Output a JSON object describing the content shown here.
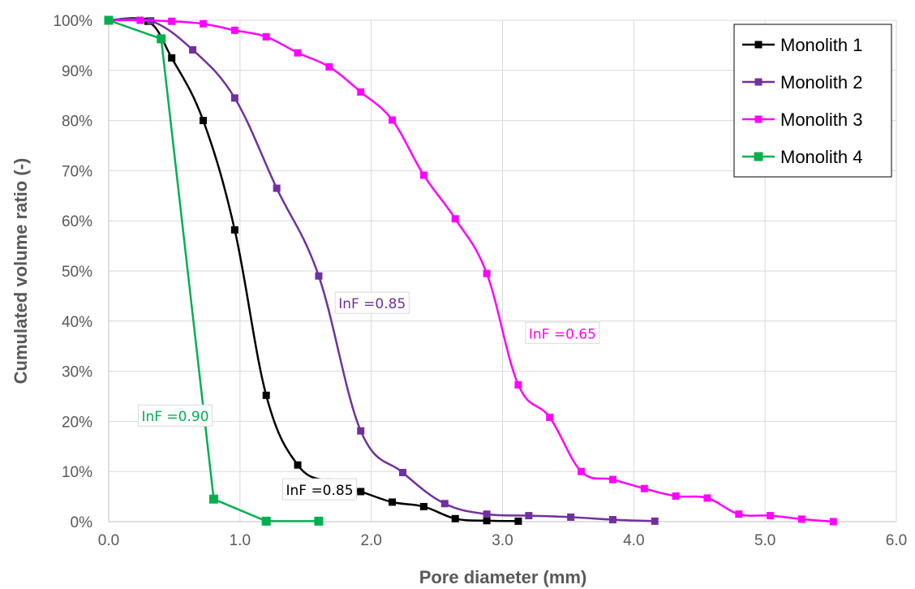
{
  "chart_data": {
    "type": "line",
    "title": "",
    "xlabel": "Pore diameter (mm)",
    "ylabel": "Cumulated volume ratio (-)",
    "xlim": [
      0,
      6
    ],
    "ylim": [
      0,
      100
    ],
    "x_ticks": [
      "0.0",
      "1.0",
      "2.0",
      "3.0",
      "4.0",
      "5.0",
      "6.0"
    ],
    "y_ticks": [
      "0%",
      "10%",
      "20%",
      "30%",
      "40%",
      "50%",
      "60%",
      "70%",
      "80%",
      "90%",
      "100%"
    ],
    "grid": true,
    "legend_position": "top-right",
    "series": [
      {
        "name": "Monolith 1",
        "color": "#000000",
        "x": [
          0.0,
          0.3,
          0.48,
          0.72,
          0.96,
          1.2,
          1.44,
          1.68,
          1.92,
          2.16,
          2.4,
          2.64,
          2.88,
          3.12
        ],
        "y": [
          100,
          99.8,
          92.5,
          80,
          58.2,
          25.2,
          11.3,
          7.9,
          6.0,
          3.9,
          3.0,
          0.6,
          0.2,
          0.1
        ]
      },
      {
        "name": "Monolith 2",
        "color": "#7030A0",
        "x": [
          0.0,
          0.32,
          0.64,
          0.96,
          1.28,
          1.6,
          1.92,
          2.24,
          2.56,
          2.88,
          3.2,
          3.52,
          3.84,
          4.16
        ],
        "y": [
          100,
          99.9,
          94.1,
          84.5,
          66.5,
          49.0,
          18.1,
          9.8,
          3.6,
          1.5,
          1.2,
          0.9,
          0.4,
          0.1
        ]
      },
      {
        "name": "Monolith 3",
        "color": "#FF00FF",
        "x": [
          0.0,
          0.24,
          0.48,
          0.72,
          0.96,
          1.2,
          1.44,
          1.68,
          1.92,
          2.16,
          2.4,
          2.64,
          2.88,
          3.12,
          3.36,
          3.6,
          3.84,
          4.08,
          4.32,
          4.56,
          4.8,
          5.04,
          5.28,
          5.52
        ],
        "y": [
          100,
          100,
          99.8,
          99.3,
          98.0,
          96.7,
          93.5,
          90.7,
          85.7,
          80.1,
          69.1,
          60.4,
          49.5,
          27.3,
          20.8,
          10.0,
          8.4,
          6.6,
          5.1,
          4.7,
          1.5,
          1.2,
          0.5,
          0.0
        ]
      },
      {
        "name": "Monolith 4",
        "color": "#00B050",
        "x": [
          0.0,
          0.4,
          0.8,
          1.2,
          1.6
        ],
        "y": [
          100,
          96.3,
          4.5,
          0.1,
          0.1
        ]
      }
    ],
    "annotations": [
      {
        "text": "InF =0.85",
        "color": "#7030A0",
        "x": 1.75,
        "y": 43.5
      },
      {
        "text": "InF =0.65",
        "color": "#FF00FF",
        "x": 3.2,
        "y": 37.5
      },
      {
        "text": "InF =0.90",
        "color": "#00B050",
        "x": 0.25,
        "y": 21.0
      },
      {
        "text": "InF =0.85",
        "color": "#000000",
        "x": 1.35,
        "y": 6.3
      }
    ]
  }
}
